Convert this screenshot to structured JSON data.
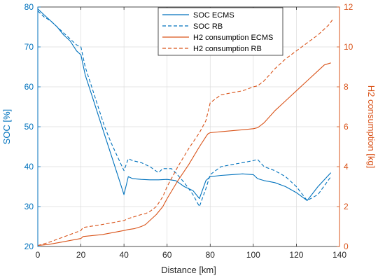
{
  "chart_data": {
    "type": "line",
    "xlabel": "Distance [km]",
    "ylabel_left": "SOC [%]",
    "ylabel_right": "H2 consumption [kg]",
    "xlim": [
      0,
      140
    ],
    "ylim_left": [
      20,
      80
    ],
    "ylim_right": [
      0,
      12
    ],
    "xticks": [
      0,
      20,
      40,
      60,
      80,
      100,
      120,
      140
    ],
    "yticks_left": [
      20,
      30,
      40,
      50,
      60,
      70,
      80
    ],
    "yticks_right": [
      0,
      2,
      4,
      6,
      8,
      10,
      12
    ],
    "grid": true,
    "legend_position": "top-center",
    "colors": {
      "soc": "#0072bd",
      "h2": "#d95319",
      "axis_left": "#0072bd",
      "axis_right": "#d95319"
    },
    "series": [
      {
        "name": "SOC ECMS",
        "axis": "left",
        "style": "solid",
        "x": [
          0,
          3,
          6,
          9,
          12,
          15,
          18,
          20,
          22,
          25,
          28,
          31,
          34,
          37,
          40,
          42,
          44,
          48,
          52,
          56,
          60,
          64,
          68,
          72,
          75,
          78,
          80,
          85,
          90,
          95,
          100,
          102,
          105,
          110,
          115,
          120,
          125,
          130,
          136
        ],
        "values": [
          79.5,
          78,
          76.5,
          75,
          73,
          71.5,
          69,
          68,
          63,
          58,
          53,
          48,
          43,
          38,
          33,
          37.5,
          37,
          36.8,
          36.7,
          36.7,
          36.8,
          36.5,
          35,
          34,
          32,
          36.5,
          37.5,
          37.8,
          38,
          38.2,
          38,
          37,
          36.5,
          36,
          35,
          33.5,
          31.5,
          35,
          38.5
        ]
      },
      {
        "name": "SOC RB",
        "axis": "left",
        "style": "dashed",
        "x": [
          0,
          3,
          6,
          9,
          12,
          15,
          18,
          20,
          22,
          25,
          28,
          31,
          34,
          37,
          40,
          42,
          44,
          48,
          52,
          56,
          58,
          60,
          62,
          64,
          68,
          72,
          75,
          78,
          80,
          85,
          90,
          95,
          100,
          102,
          105,
          110,
          115,
          120,
          125,
          130,
          136
        ],
        "values": [
          79,
          77.5,
          76.5,
          75,
          73.5,
          72,
          70.5,
          70,
          65,
          60,
          55,
          50,
          46,
          42.5,
          39,
          42,
          41.5,
          41,
          40,
          38.5,
          39.5,
          39.5,
          39.5,
          38.5,
          36,
          33,
          30,
          34.5,
          38,
          40,
          40.5,
          41,
          41.5,
          41.8,
          40,
          39,
          37.5,
          35,
          31.5,
          33,
          37.5
        ]
      },
      {
        "name": "H2 consumption ECMS",
        "axis": "right",
        "style": "solid",
        "x": [
          0,
          5,
          10,
          15,
          20,
          21,
          30,
          35,
          40,
          42,
          45,
          48,
          50,
          52,
          55,
          58,
          60,
          65,
          70,
          75,
          78,
          79,
          80,
          85,
          90,
          95,
          100,
          102,
          105,
          110,
          115,
          120,
          125,
          130,
          133,
          136
        ],
        "values": [
          0.05,
          0.1,
          0.2,
          0.3,
          0.4,
          0.5,
          0.6,
          0.7,
          0.8,
          0.85,
          0.9,
          1.0,
          1.1,
          1.3,
          1.6,
          2.0,
          2.4,
          3.3,
          4.1,
          5.0,
          5.5,
          5.65,
          5.7,
          5.75,
          5.8,
          5.85,
          5.9,
          5.95,
          6.2,
          6.8,
          7.3,
          7.8,
          8.3,
          8.8,
          9.1,
          9.2
        ]
      },
      {
        "name": "H2 consumption RB",
        "axis": "right",
        "style": "dashed",
        "x": [
          0,
          5,
          10,
          15,
          20,
          21,
          30,
          35,
          40,
          42,
          45,
          48,
          50,
          52,
          55,
          58,
          60,
          65,
          70,
          75,
          78,
          80,
          85,
          90,
          95,
          100,
          102,
          105,
          110,
          115,
          120,
          125,
          130,
          135,
          137
        ],
        "values": [
          0.05,
          0.2,
          0.4,
          0.6,
          0.8,
          0.95,
          1.1,
          1.2,
          1.3,
          1.4,
          1.5,
          1.6,
          1.65,
          1.75,
          2.0,
          2.5,
          3.0,
          4.0,
          4.9,
          5.7,
          6.3,
          7.2,
          7.6,
          7.7,
          7.8,
          8.0,
          8.05,
          8.3,
          8.9,
          9.4,
          9.8,
          10.2,
          10.6,
          11.1,
          11.4
        ]
      }
    ]
  }
}
